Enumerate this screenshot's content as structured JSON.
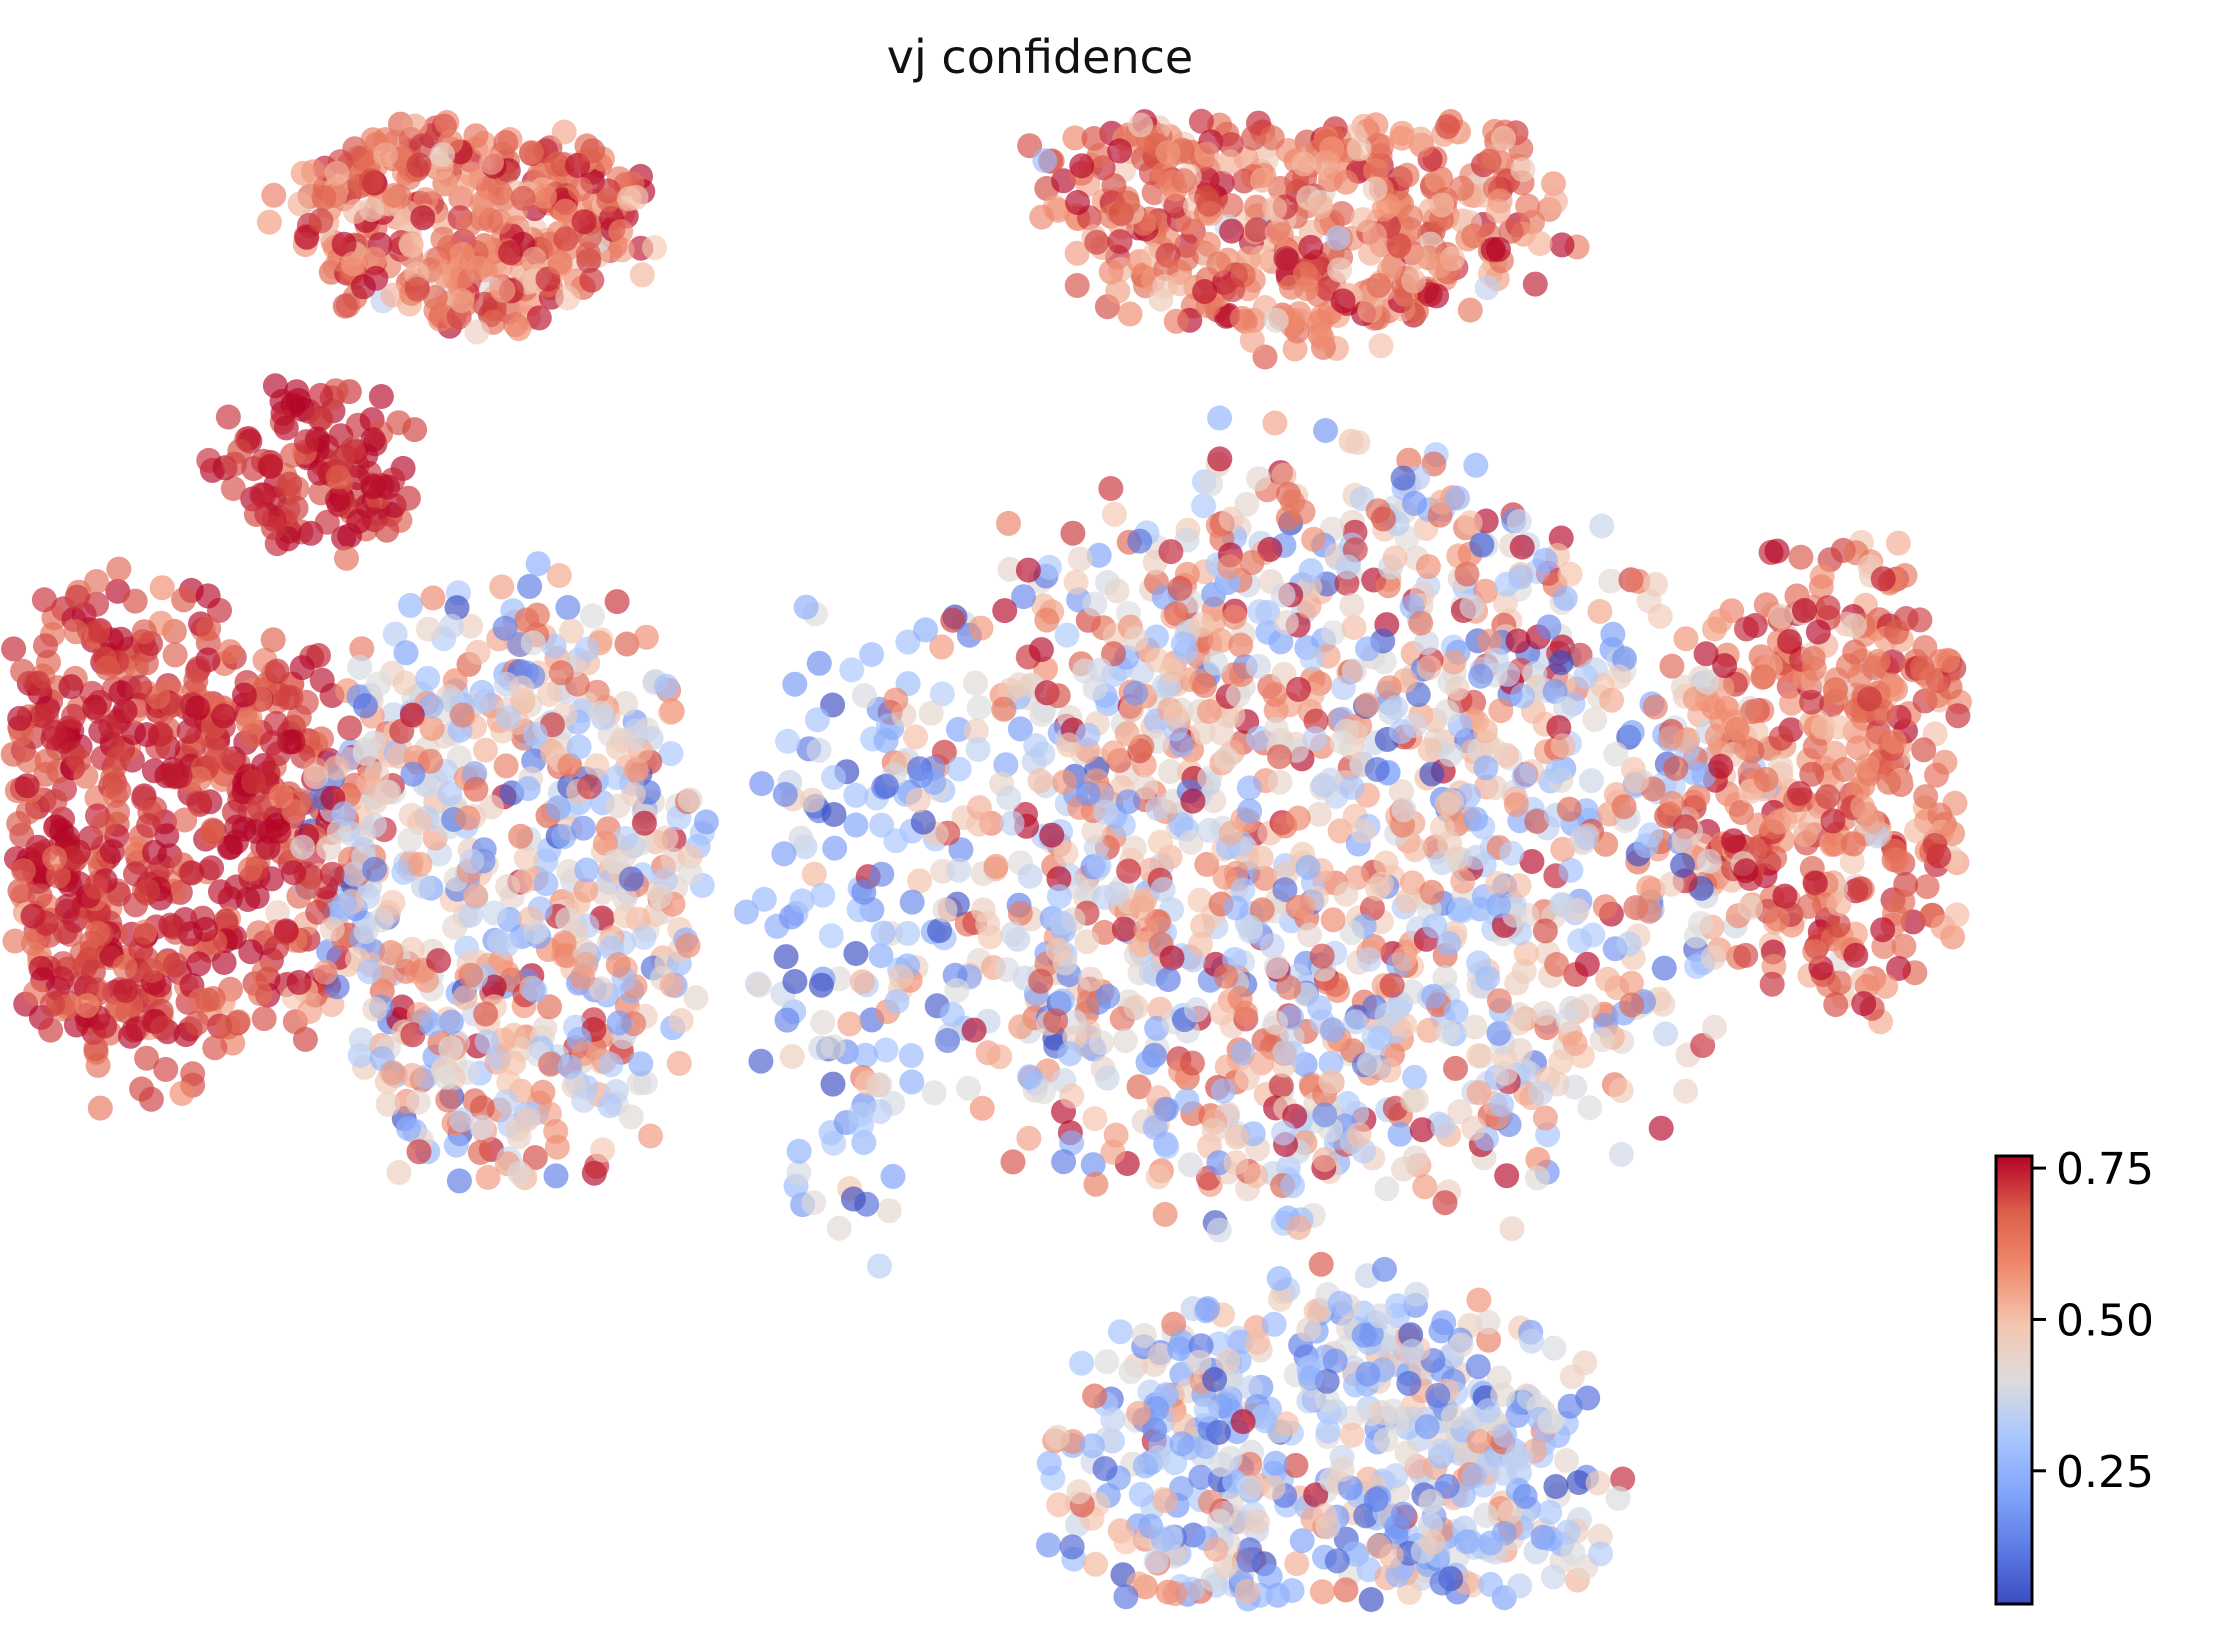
{
  "chart_data": {
    "type": "scatter",
    "title": "vj confidence",
    "xlabel": "",
    "ylabel": "",
    "grid": false,
    "axes_visible": false,
    "colormap": "coolwarm",
    "colorbar": {
      "placement": "bottom-right",
      "vmin": 0.03,
      "vmax": 0.77,
      "ticks": [
        0.25,
        0.5,
        0.75
      ],
      "tick_labels": [
        "0.25",
        "0.50",
        "0.75"
      ]
    },
    "point_alpha": 0.65,
    "clusters": [
      {
        "id": "left-main",
        "cx": -2.9,
        "cy": 0.3,
        "rx": 0.75,
        "ry": 0.85,
        "n": 700,
        "mean": 0.72,
        "sd": 0.06
      },
      {
        "id": "left-mid",
        "cx": -1.75,
        "cy": 0.15,
        "rx": 0.7,
        "ry": 1.05,
        "n": 650,
        "mean": 0.42,
        "sd": 0.17
      },
      {
        "id": "left-top",
        "cx": -1.85,
        "cy": 2.35,
        "rx": 0.62,
        "ry": 0.36,
        "n": 360,
        "mean": 0.64,
        "sd": 0.09
      },
      {
        "id": "left-ridge",
        "cx": -2.35,
        "cy": 1.55,
        "rx": 0.35,
        "ry": 0.3,
        "n": 120,
        "mean": 0.74,
        "sd": 0.05
      },
      {
        "id": "center-gap",
        "cx": -0.55,
        "cy": 0.05,
        "rx": 0.35,
        "ry": 1.1,
        "n": 140,
        "mean": 0.28,
        "sd": 0.15
      },
      {
        "id": "right-top",
        "cx": 0.95,
        "cy": 2.45,
        "rx": 0.9,
        "ry": 0.52,
        "n": 560,
        "mean": 0.63,
        "sd": 0.1
      },
      {
        "id": "right-center",
        "cx": 1.0,
        "cy": 0.3,
        "rx": 1.45,
        "ry": 1.35,
        "n": 1400,
        "mean": 0.46,
        "sd": 0.18
      },
      {
        "id": "right-bottom",
        "cx": 1.05,
        "cy": -1.85,
        "rx": 0.95,
        "ry": 0.72,
        "n": 650,
        "mean": 0.34,
        "sd": 0.16
      },
      {
        "id": "right-lobe",
        "cx": 2.75,
        "cy": 0.5,
        "rx": 0.55,
        "ry": 0.78,
        "n": 420,
        "mean": 0.63,
        "sd": 0.1
      },
      {
        "id": "right-tip",
        "cx": 3.35,
        "cy": 0.15,
        "rx": 0.18,
        "ry": 0.22,
        "n": 60,
        "mean": 0.74,
        "sd": 0.04
      }
    ]
  }
}
